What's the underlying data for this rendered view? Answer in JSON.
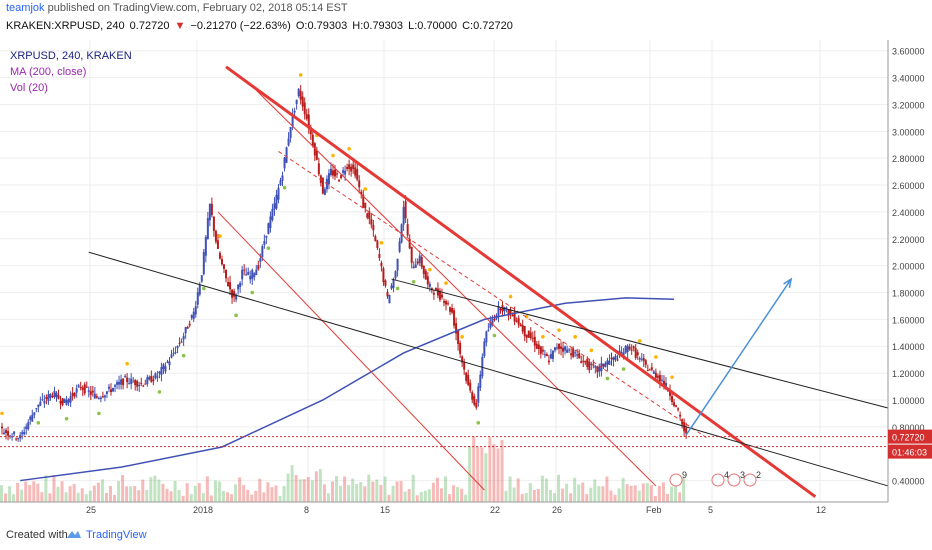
{
  "header": {
    "author": "teamjok",
    "published_text": "published on TradingView.com, February 02, 2018 05:14 EST",
    "symbol": "KRAKEN:XRPUSD, 240",
    "last": "0.72720",
    "change_arrow": "▼",
    "change": "−0.21270 (−22.63%)",
    "open": "O:0.79303",
    "high": "H:0.79303",
    "low": "L:0.70000",
    "close": "C:0.72720"
  },
  "legend": {
    "series": "XRPUSD, 240, KRAKEN",
    "ma": "MA (200, close)",
    "vol": "Vol (20)"
  },
  "footer": {
    "created_with": "Created with",
    "brand": "TradingView"
  },
  "colors": {
    "up": "#3f51b5",
    "down": "#b71c1c",
    "ma": "#3f51b5",
    "trend_red": "#e53935",
    "channel_black": "#222222",
    "projection": "#4a90d9",
    "sar_up": "#8bc34a",
    "sar_down": "#ffb300",
    "price_label_bg": "#d32f2f"
  },
  "chart_data": {
    "type": "candlestick",
    "x_axis_labels": [
      "25",
      "2018",
      "8",
      "15",
      "22",
      "26",
      "Feb",
      "5",
      "12"
    ],
    "y_axis_labels": [
      "3.60000",
      "3.40000",
      "3.20000",
      "3.00000",
      "2.80000",
      "2.60000",
      "2.40000",
      "2.20000",
      "2.00000",
      "1.80000",
      "1.60000",
      "1.40000",
      "1.20000",
      "1.00000",
      "0.80000",
      "0.40000"
    ],
    "y_range": [
      0.3,
      3.65
    ],
    "last_price_label": "0.72720",
    "countdown_label": "01:46:03",
    "series_price_path": [
      [
        0,
        0.78
      ],
      [
        10,
        0.72
      ],
      [
        18,
        0.95
      ],
      [
        26,
        1.05
      ],
      [
        32,
        0.98
      ],
      [
        40,
        1.1
      ],
      [
        48,
        1.02
      ],
      [
        55,
        1.08
      ],
      [
        62,
        1.15
      ],
      [
        70,
        1.12
      ],
      [
        78,
        1.18
      ],
      [
        84,
        1.3
      ],
      [
        90,
        1.45
      ],
      [
        96,
        1.65
      ],
      [
        100,
        1.95
      ],
      [
        104,
        2.45
      ],
      [
        108,
        2.1
      ],
      [
        112,
        1.9
      ],
      [
        116,
        1.75
      ],
      [
        120,
        1.95
      ],
      [
        124,
        1.92
      ],
      [
        128,
        2.0
      ],
      [
        132,
        2.25
      ],
      [
        136,
        2.45
      ],
      [
        140,
        2.7
      ],
      [
        144,
        3.05
      ],
      [
        148,
        3.3
      ],
      [
        152,
        3.1
      ],
      [
        156,
        2.85
      ],
      [
        160,
        2.55
      ],
      [
        164,
        2.7
      ],
      [
        168,
        2.65
      ],
      [
        172,
        2.75
      ],
      [
        176,
        2.7
      ],
      [
        180,
        2.45
      ],
      [
        184,
        2.3
      ],
      [
        188,
        2.05
      ],
      [
        192,
        1.75
      ],
      [
        196,
        1.95
      ],
      [
        200,
        2.45
      ],
      [
        204,
        2.0
      ],
      [
        208,
        2.05
      ],
      [
        212,
        1.85
      ],
      [
        216,
        1.8
      ],
      [
        220,
        1.75
      ],
      [
        224,
        1.65
      ],
      [
        228,
        1.35
      ],
      [
        232,
        1.1
      ],
      [
        236,
        0.95
      ],
      [
        240,
        1.45
      ],
      [
        244,
        1.6
      ],
      [
        248,
        1.7
      ],
      [
        252,
        1.65
      ],
      [
        256,
        1.6
      ],
      [
        260,
        1.5
      ],
      [
        264,
        1.45
      ],
      [
        268,
        1.35
      ],
      [
        272,
        1.3
      ],
      [
        276,
        1.4
      ],
      [
        280,
        1.38
      ],
      [
        284,
        1.35
      ],
      [
        288,
        1.3
      ],
      [
        292,
        1.25
      ],
      [
        296,
        1.22
      ],
      [
        300,
        1.28
      ],
      [
        304,
        1.3
      ],
      [
        308,
        1.35
      ],
      [
        312,
        1.4
      ],
      [
        316,
        1.32
      ],
      [
        320,
        1.25
      ],
      [
        324,
        1.2
      ],
      [
        328,
        1.15
      ],
      [
        332,
        1.05
      ],
      [
        336,
        0.9
      ],
      [
        340,
        0.73
      ]
    ],
    "ma200_path": [
      [
        10,
        0.4
      ],
      [
        60,
        0.5
      ],
      [
        110,
        0.65
      ],
      [
        160,
        1.0
      ],
      [
        200,
        1.35
      ],
      [
        240,
        1.6
      ],
      [
        280,
        1.72
      ],
      [
        310,
        1.76
      ],
      [
        334,
        1.75
      ]
    ],
    "trendlines": [
      {
        "name": "main-red",
        "from": [
          112,
          3.48
        ],
        "to": [
          404,
          0.28
        ]
      },
      {
        "name": "thin-red-1",
        "from": [
          124,
          3.35
        ],
        "to": [
          325,
          0.36
        ]
      },
      {
        "name": "thin-red-2",
        "from": [
          108,
          2.4
        ],
        "to": [
          240,
          0.33
        ]
      },
      {
        "name": "dashed-red",
        "from": [
          138,
          2.85
        ],
        "to": [
          350,
          0.72
        ]
      },
      {
        "name": "black-channel-1",
        "from": [
          44,
          2.1
        ],
        "to": [
          440,
          0.36
        ]
      },
      {
        "name": "black-channel-2",
        "from": [
          194,
          1.9
        ],
        "to": [
          440,
          0.94
        ]
      }
    ],
    "projection_arrow": {
      "from": [
        340,
        0.74
      ],
      "to": [
        392,
        1.9
      ]
    },
    "event_badges": [
      "9",
      "4",
      "3",
      "2"
    ]
  }
}
